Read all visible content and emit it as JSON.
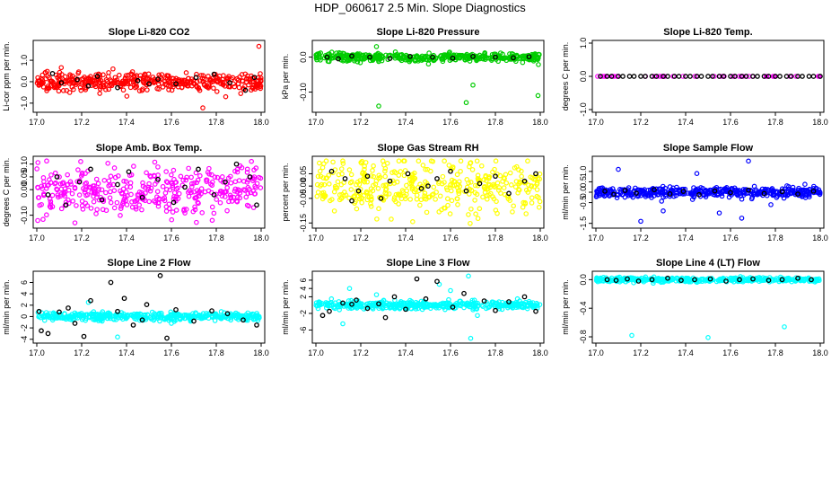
{
  "title": "HDP_060617  2.5 Min. Slope Diagnostics",
  "chart_data": [
    {
      "type": "scatter",
      "title": "Slope Li-820 CO2",
      "ylabel": "Li-cor ppm per min.",
      "xlim": [
        17.0,
        18.0
      ],
      "ylim": [
        -1.3,
        1.8
      ],
      "xticks": [
        "17.0",
        "17.2",
        "17.4",
        "17.6",
        "17.8",
        "18.0"
      ],
      "yticks": [
        "-1.0",
        "0.0",
        "1.0"
      ],
      "color": "#ff0000",
      "n_points": 420,
      "spread": 0.2,
      "center": 0.0,
      "highlight_points": [
        [
          17.99,
          1.65
        ],
        [
          17.74,
          -1.22
        ]
      ],
      "black_points": [
        [
          17.07,
          0.38
        ],
        [
          17.11,
          -0.05
        ],
        [
          17.18,
          0.1
        ],
        [
          17.27,
          0.25
        ],
        [
          17.36,
          -0.28
        ],
        [
          17.45,
          0.05
        ],
        [
          17.54,
          0.12
        ],
        [
          17.62,
          -0.1
        ],
        [
          17.71,
          0.2
        ],
        [
          17.79,
          0.35
        ],
        [
          17.86,
          -0.05
        ],
        [
          17.93,
          -0.4
        ],
        [
          17.97,
          0.2
        ],
        [
          17.23,
          -0.2
        ],
        [
          17.5,
          -0.1
        ]
      ]
    },
    {
      "type": "scatter",
      "title": "Slope Li-820 Pressure",
      "ylabel": "kPa per min.",
      "xlim": [
        17.0,
        18.0
      ],
      "ylim": [
        -0.15,
        0.04
      ],
      "xticks": [
        "17.0",
        "17.2",
        "17.4",
        "17.6",
        "17.8",
        "18.0"
      ],
      "yticks": [
        "-0.10",
        "0.0"
      ],
      "color": "#00cc00",
      "n_points": 420,
      "spread": 0.006,
      "center": 0.0,
      "highlight_points": [
        [
          17.28,
          -0.14
        ],
        [
          17.67,
          -0.13
        ],
        [
          17.99,
          -0.11
        ],
        [
          17.7,
          -0.08
        ],
        [
          17.27,
          0.03
        ]
      ],
      "black_points": [
        [
          17.05,
          0.0
        ],
        [
          17.1,
          -0.005
        ],
        [
          17.16,
          0.003
        ],
        [
          17.24,
          0.0
        ],
        [
          17.33,
          -0.004
        ],
        [
          17.42,
          0.002
        ],
        [
          17.52,
          0.0
        ],
        [
          17.61,
          -0.003
        ],
        [
          17.7,
          0.002
        ],
        [
          17.8,
          0.0
        ],
        [
          17.88,
          -0.002
        ],
        [
          17.95,
          0.001
        ]
      ]
    },
    {
      "type": "scatter",
      "title": "Slope Li-820 Temp.",
      "ylabel": "degrees C per min.",
      "xlim": [
        17.0,
        18.0
      ],
      "ylim": [
        -1.0,
        1.0
      ],
      "xticks": [
        "17.0",
        "17.2",
        "17.4",
        "17.6",
        "17.8",
        "18.0"
      ],
      "yticks": [
        "-1.0",
        "0.0",
        "1.0"
      ],
      "color": "#ff00ff",
      "n_points": 40,
      "spread": 0.0,
      "center": 0.0,
      "highlight_points": [],
      "black_points": [
        [
          17.02,
          0.0
        ],
        [
          17.05,
          0.0
        ],
        [
          17.07,
          0.0
        ],
        [
          17.1,
          0.0
        ],
        [
          17.12,
          0.0
        ],
        [
          17.15,
          0.0
        ],
        [
          17.17,
          0.0
        ],
        [
          17.2,
          0.0
        ],
        [
          17.22,
          0.0
        ],
        [
          17.25,
          0.0
        ],
        [
          17.27,
          0.0
        ],
        [
          17.3,
          0.0
        ],
        [
          17.32,
          0.0
        ],
        [
          17.35,
          0.0
        ],
        [
          17.37,
          0.0
        ],
        [
          17.4,
          0.0
        ],
        [
          17.42,
          0.0
        ],
        [
          17.45,
          0.0
        ],
        [
          17.47,
          0.0
        ],
        [
          17.5,
          0.0
        ],
        [
          17.52,
          0.0
        ],
        [
          17.55,
          0.0
        ],
        [
          17.57,
          0.0
        ],
        [
          17.6,
          0.0
        ],
        [
          17.62,
          0.0
        ],
        [
          17.65,
          0.0
        ],
        [
          17.67,
          0.0
        ],
        [
          17.7,
          0.0
        ],
        [
          17.72,
          0.0
        ],
        [
          17.75,
          0.0
        ],
        [
          17.77,
          0.0
        ],
        [
          17.8,
          0.0
        ],
        [
          17.82,
          0.0
        ],
        [
          17.85,
          0.0
        ],
        [
          17.87,
          0.0
        ],
        [
          17.9,
          0.0
        ],
        [
          17.92,
          0.0
        ],
        [
          17.95,
          0.0
        ],
        [
          17.97,
          0.0
        ],
        [
          18.0,
          0.0
        ]
      ]
    },
    {
      "type": "scatter",
      "title": "Slope Amb. Box Temp.",
      "ylabel": "degrees C per min.",
      "xlim": [
        17.0,
        18.0
      ],
      "ylim": [
        -0.14,
        0.12
      ],
      "xticks": [
        "17.0",
        "17.2",
        "17.4",
        "17.6",
        "17.8",
        "18.0"
      ],
      "yticks": [
        "-0.10",
        "0.00",
        "0.05",
        "0.10"
      ],
      "color": "#ff00ff",
      "n_points": 380,
      "spread": 0.05,
      "center": 0.0,
      "highlight_points": [
        [
          17.17,
          -0.13
        ]
      ],
      "black_points": [
        [
          17.05,
          -0.02
        ],
        [
          17.09,
          0.05
        ],
        [
          17.13,
          -0.06
        ],
        [
          17.19,
          0.03
        ],
        [
          17.24,
          0.08
        ],
        [
          17.29,
          -0.04
        ],
        [
          17.36,
          0.02
        ],
        [
          17.41,
          0.07
        ],
        [
          17.47,
          -0.03
        ],
        [
          17.54,
          0.04
        ],
        [
          17.61,
          -0.05
        ],
        [
          17.66,
          0.01
        ],
        [
          17.72,
          0.08
        ],
        [
          17.79,
          -0.02
        ],
        [
          17.84,
          0.03
        ],
        [
          17.89,
          0.1
        ],
        [
          17.95,
          0.05
        ],
        [
          17.98,
          -0.06
        ]
      ]
    },
    {
      "type": "scatter",
      "title": "Slope Gas Stream RH",
      "ylabel": "percent per min.",
      "xlim": [
        17.0,
        18.0
      ],
      "ylim": [
        -0.16,
        0.11
      ],
      "xticks": [
        "17.0",
        "17.2",
        "17.4",
        "17.6",
        "17.8",
        "18.0"
      ],
      "yticks": [
        "-0.15",
        "-0.05",
        "0.00",
        "0.05"
      ],
      "color": "#ffff00",
      "n_points": 400,
      "spread": 0.05,
      "center": 0.0,
      "highlight_points": [],
      "black_points": [
        [
          17.07,
          0.06
        ],
        [
          17.13,
          0.03
        ],
        [
          17.19,
          -0.02
        ],
        [
          17.23,
          0.04
        ],
        [
          17.29,
          -0.05
        ],
        [
          17.33,
          0.02
        ],
        [
          17.41,
          0.05
        ],
        [
          17.47,
          -0.01
        ],
        [
          17.54,
          0.03
        ],
        [
          17.6,
          0.06
        ],
        [
          17.67,
          -0.02
        ],
        [
          17.73,
          0.01
        ],
        [
          17.8,
          0.04
        ],
        [
          17.86,
          -0.03
        ],
        [
          17.93,
          0.02
        ],
        [
          17.98,
          0.05
        ],
        [
          17.16,
          -0.06
        ],
        [
          17.5,
          0.0
        ]
      ]
    },
    {
      "type": "scatter",
      "title": "Slope Sample Flow",
      "ylabel": "ml/min per min.",
      "xlim": [
        17.0,
        18.0
      ],
      "ylim": [
        -1.6,
        1.6
      ],
      "xticks": [
        "17.0",
        "17.2",
        "17.4",
        "17.6",
        "17.8",
        "18.0"
      ],
      "yticks": [
        "-1.5",
        "-0.5",
        "0.0",
        "0.5",
        "1.0"
      ],
      "color": "#0000ff",
      "n_points": 420,
      "spread": 0.12,
      "center": 0.0,
      "highlight_points": [
        [
          17.68,
          1.5
        ],
        [
          17.2,
          -1.4
        ],
        [
          17.65,
          -1.25
        ],
        [
          17.1,
          1.1
        ],
        [
          17.45,
          0.9
        ],
        [
          17.3,
          -0.9
        ],
        [
          17.78,
          -0.6
        ],
        [
          17.55,
          -1.0
        ]
      ],
      "black_points": [
        [
          17.04,
          0.05
        ],
        [
          17.08,
          -0.1
        ],
        [
          17.13,
          0.08
        ],
        [
          17.18,
          -0.05
        ],
        [
          17.26,
          0.12
        ],
        [
          17.33,
          -0.08
        ],
        [
          17.39,
          0.04
        ],
        [
          17.46,
          -0.12
        ],
        [
          17.53,
          0.06
        ],
        [
          17.6,
          -0.02
        ],
        [
          17.68,
          0.1
        ],
        [
          17.75,
          -0.06
        ],
        [
          17.83,
          0.03
        ],
        [
          17.9,
          -0.09
        ],
        [
          17.97,
          0.05
        ]
      ]
    },
    {
      "type": "scatter",
      "title": "Slope Line 2 Flow",
      "ylabel": "ml/min per min.",
      "xlim": [
        17.0,
        18.0
      ],
      "ylim": [
        -4.2,
        7.5
      ],
      "xticks": [
        "17.0",
        "17.2",
        "17.4",
        "17.6",
        "17.8",
        "18.0"
      ],
      "yticks": [
        "-4",
        "-2",
        "0",
        "2",
        "4",
        "6"
      ],
      "color": "#00ffff",
      "n_points": 420,
      "spread": 0.35,
      "center": 0.0,
      "highlight_points": [
        [
          17.36,
          -3.6
        ],
        [
          17.23,
          2.5
        ],
        [
          17.6,
          -1.2
        ]
      ],
      "black_points": [
        [
          17.02,
          -2.5
        ],
        [
          17.05,
          -3.0
        ],
        [
          17.1,
          0.8
        ],
        [
          17.14,
          1.5
        ],
        [
          17.17,
          -1.2
        ],
        [
          17.21,
          -3.5
        ],
        [
          17.24,
          2.8
        ],
        [
          17.33,
          6.0
        ],
        [
          17.36,
          0.9
        ],
        [
          17.39,
          3.2
        ],
        [
          17.43,
          -1.5
        ],
        [
          17.49,
          2.1
        ],
        [
          17.55,
          7.2
        ],
        [
          17.58,
          -3.8
        ],
        [
          17.62,
          1.2
        ],
        [
          17.7,
          -0.8
        ],
        [
          17.78,
          1.0
        ],
        [
          17.85,
          0.5
        ],
        [
          17.92,
          -0.6
        ],
        [
          17.98,
          -1.5
        ],
        [
          17.01,
          0.9
        ],
        [
          17.47,
          -0.6
        ]
      ]
    },
    {
      "type": "scatter",
      "title": "Slope Line 3 Flow",
      "ylabel": "ml/min per min.",
      "xlim": [
        17.0,
        18.0
      ],
      "ylim": [
        -8.5,
        7.5
      ],
      "xticks": [
        "17.0",
        "17.2",
        "17.4",
        "17.6",
        "17.8",
        "18.0"
      ],
      "yticks": [
        "-6",
        "-2",
        "2",
        "4",
        "6"
      ],
      "color": "#00ffff",
      "n_points": 420,
      "spread": 0.5,
      "center": 0.0,
      "highlight_points": [
        [
          17.69,
          -8.0
        ],
        [
          17.68,
          7.0
        ],
        [
          17.12,
          -4.5
        ],
        [
          17.15,
          4.0
        ],
        [
          17.55,
          5.0
        ],
        [
          17.6,
          3.5
        ],
        [
          17.27,
          2.5
        ],
        [
          17.72,
          -2.5
        ]
      ],
      "black_points": [
        [
          17.03,
          -2.5
        ],
        [
          17.06,
          -1.5
        ],
        [
          17.12,
          0.5
        ],
        [
          17.18,
          1.2
        ],
        [
          17.23,
          -0.8
        ],
        [
          17.28,
          0.3
        ],
        [
          17.35,
          2.0
        ],
        [
          17.4,
          -1.0
        ],
        [
          17.45,
          6.3
        ],
        [
          17.49,
          1.5
        ],
        [
          17.54,
          5.7
        ],
        [
          17.61,
          -0.5
        ],
        [
          17.66,
          2.8
        ],
        [
          17.75,
          1.0
        ],
        [
          17.8,
          -1.3
        ],
        [
          17.86,
          0.8
        ],
        [
          17.93,
          2.0
        ],
        [
          17.98,
          -1.5
        ],
        [
          17.31,
          -3.0
        ],
        [
          17.16,
          0.2
        ]
      ]
    },
    {
      "type": "scatter",
      "title": "Slope Line 4 (LT) Flow",
      "ylabel": "ml/min per min.",
      "xlim": [
        17.0,
        18.0
      ],
      "ylim": [
        -0.85,
        0.08
      ],
      "xticks": [
        "17.0",
        "17.2",
        "17.4",
        "17.6",
        "17.8",
        "18.0"
      ],
      "yticks": [
        "-0.8",
        "-0.4",
        "0.0"
      ],
      "color": "#00ffff",
      "n_points": 420,
      "spread": 0.015,
      "center": 0.0,
      "highlight_points": [
        [
          17.16,
          -0.78
        ],
        [
          17.5,
          -0.81
        ],
        [
          17.84,
          -0.66
        ]
      ],
      "black_points": [
        [
          17.05,
          0.0
        ],
        [
          17.09,
          -0.01
        ],
        [
          17.14,
          0.01
        ],
        [
          17.19,
          -0.02
        ],
        [
          17.25,
          0.0
        ],
        [
          17.32,
          0.02
        ],
        [
          17.38,
          -0.01
        ],
        [
          17.44,
          0.0
        ],
        [
          17.51,
          0.01
        ],
        [
          17.58,
          -0.02
        ],
        [
          17.64,
          0.0
        ],
        [
          17.7,
          0.01
        ],
        [
          17.77,
          -0.01
        ],
        [
          17.83,
          0.0
        ],
        [
          17.9,
          0.02
        ],
        [
          17.96,
          0.0
        ]
      ]
    }
  ]
}
